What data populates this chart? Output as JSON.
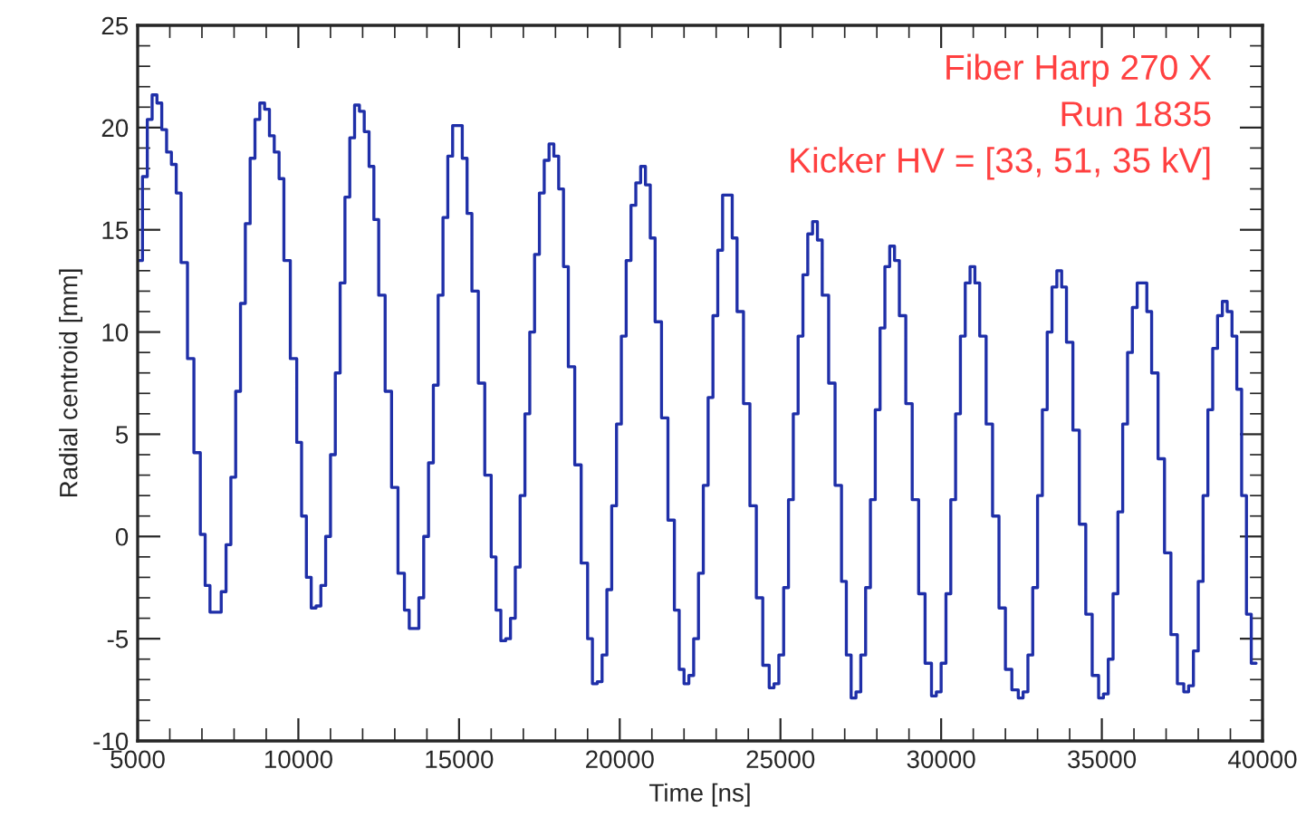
{
  "chart_data": {
    "type": "step",
    "xlabel": "Time [ns]",
    "ylabel": "Radial centroid [mm]",
    "annotations": [
      "Fiber Harp 270 X",
      "Run 1835",
      "Kicker HV = [33, 51, 35 kV]"
    ],
    "xlim": [
      5000,
      40000
    ],
    "xticks": [
      5000,
      10000,
      15000,
      20000,
      25000,
      30000,
      35000,
      40000
    ],
    "ylim": [
      -10,
      25
    ],
    "yticks": [
      -10,
      -5,
      0,
      5,
      10,
      15,
      20,
      25
    ],
    "grid": false,
    "series": [
      {
        "color": "#1f2fa8",
        "x": [
          5000,
          5150,
          5300,
          5450,
          5600,
          5750,
          5900,
          6050,
          6200,
          6350,
          6550,
          6750,
          6950,
          7100,
          7250,
          7450,
          7600,
          7750,
          7900,
          8050,
          8200,
          8350,
          8500,
          8650,
          8800,
          8950,
          9100,
          9250,
          9400,
          9550,
          9750,
          9950,
          10100,
          10250,
          10400,
          10550,
          10700,
          10850,
          11000,
          11150,
          11300,
          11450,
          11600,
          11750,
          11900,
          12050,
          12200,
          12350,
          12500,
          12700,
          12900,
          13100,
          13300,
          13450,
          13600,
          13750,
          13900,
          14050,
          14200,
          14350,
          14500,
          14650,
          14800,
          14950,
          15100,
          15250,
          15400,
          15600,
          15800,
          16000,
          16150,
          16300,
          16450,
          16600,
          16750,
          16900,
          17050,
          17200,
          17350,
          17500,
          17650,
          17800,
          17950,
          18100,
          18250,
          18400,
          18600,
          18800,
          19000,
          19150,
          19300,
          19450,
          19600,
          19750,
          19900,
          20050,
          20200,
          20350,
          20500,
          20650,
          20800,
          20950,
          21100,
          21300,
          21500,
          21700,
          21850,
          22000,
          22150,
          22300,
          22450,
          22600,
          22750,
          22900,
          23050,
          23200,
          23350,
          23500,
          23650,
          23850,
          24050,
          24250,
          24450,
          24650,
          24800,
          24950,
          25100,
          25250,
          25400,
          25550,
          25700,
          25850,
          26000,
          26150,
          26300,
          26500,
          26700,
          26900,
          27050,
          27200,
          27350,
          27500,
          27650,
          27800,
          27950,
          28100,
          28250,
          28400,
          28550,
          28700,
          28900,
          29100,
          29300,
          29500,
          29700,
          29850,
          30000,
          30150,
          30300,
          30450,
          30600,
          30750,
          30900,
          31050,
          31200,
          31400,
          31600,
          31800,
          32000,
          32200,
          32400,
          32550,
          32700,
          32850,
          33000,
          33150,
          33300,
          33450,
          33600,
          33750,
          33900,
          34100,
          34300,
          34500,
          34700,
          34900,
          35050,
          35200,
          35350,
          35500,
          35650,
          35800,
          35950,
          36100,
          36250,
          36400,
          36550,
          36750,
          36950,
          37150,
          37350,
          37550,
          37700,
          37850,
          38000,
          38150,
          38300,
          38450,
          38600,
          38750,
          38900,
          39050,
          39200,
          39350,
          39500,
          39650,
          39800
        ],
        "values": [
          13.5,
          17.6,
          20.4,
          21.6,
          21.2,
          19.9,
          18.8,
          18.2,
          16.8,
          13.4,
          8.7,
          4.1,
          0.1,
          -2.4,
          -3.7,
          -3.7,
          -2.7,
          -0.4,
          2.9,
          7.1,
          11.4,
          15.3,
          18.5,
          20.4,
          21.2,
          20.9,
          19.6,
          18.8,
          17.5,
          13.5,
          8.7,
          4.6,
          1.0,
          -2.0,
          -3.5,
          -3.4,
          -2.4,
          0.0,
          4.0,
          8.0,
          12.4,
          16.6,
          19.5,
          21.1,
          20.8,
          19.8,
          18.1,
          15.5,
          11.8,
          7.1,
          2.4,
          -1.8,
          -3.6,
          -4.5,
          -4.5,
          -3.0,
          0.0,
          3.6,
          7.4,
          11.8,
          15.6,
          18.6,
          20.1,
          20.1,
          18.5,
          15.8,
          12.0,
          7.5,
          3.0,
          -1.0,
          -3.6,
          -5.1,
          -5.0,
          -4.0,
          -1.5,
          2.0,
          6.0,
          10.0,
          13.8,
          16.8,
          18.4,
          19.2,
          18.6,
          17.0,
          13.2,
          8.3,
          3.5,
          -1.3,
          -5.0,
          -7.2,
          -7.1,
          -5.8,
          -2.6,
          1.5,
          5.5,
          9.8,
          13.5,
          16.2,
          17.3,
          18.1,
          17.2,
          14.6,
          10.5,
          5.8,
          0.8,
          -3.6,
          -6.5,
          -7.2,
          -6.8,
          -5.0,
          -1.8,
          2.5,
          6.8,
          10.8,
          14.0,
          16.7,
          16.7,
          14.6,
          11.0,
          6.5,
          1.5,
          -3.0,
          -6.3,
          -7.4,
          -7.2,
          -5.8,
          -2.5,
          1.8,
          6.0,
          9.8,
          12.8,
          14.8,
          15.4,
          14.5,
          11.8,
          7.5,
          2.5,
          -2.2,
          -5.8,
          -7.9,
          -7.6,
          -5.8,
          -2.5,
          1.8,
          6.2,
          10.2,
          13.2,
          14.2,
          13.5,
          10.8,
          6.5,
          1.8,
          -2.8,
          -6.2,
          -7.8,
          -7.6,
          -6.2,
          -2.8,
          1.8,
          6.0,
          9.8,
          12.4,
          13.2,
          12.4,
          9.8,
          5.5,
          1.0,
          -3.5,
          -6.5,
          -7.5,
          -7.9,
          -7.6,
          -5.8,
          -2.5,
          2.0,
          6.2,
          10.0,
          12.2,
          13.0,
          12.2,
          9.5,
          5.2,
          0.6,
          -3.8,
          -6.8,
          -7.9,
          -7.7,
          -6.0,
          -2.8,
          1.2,
          5.5,
          9.0,
          11.2,
          12.4,
          12.4,
          11.0,
          8.0,
          3.8,
          -0.8,
          -4.8,
          -7.2,
          -7.6,
          -7.3,
          -5.6,
          -2.2,
          2.0,
          6.2,
          9.2,
          10.8,
          11.5,
          11.0,
          9.8,
          7.2,
          2.0,
          -3.8,
          -6.2,
          -6.2
        ]
      }
    ]
  }
}
